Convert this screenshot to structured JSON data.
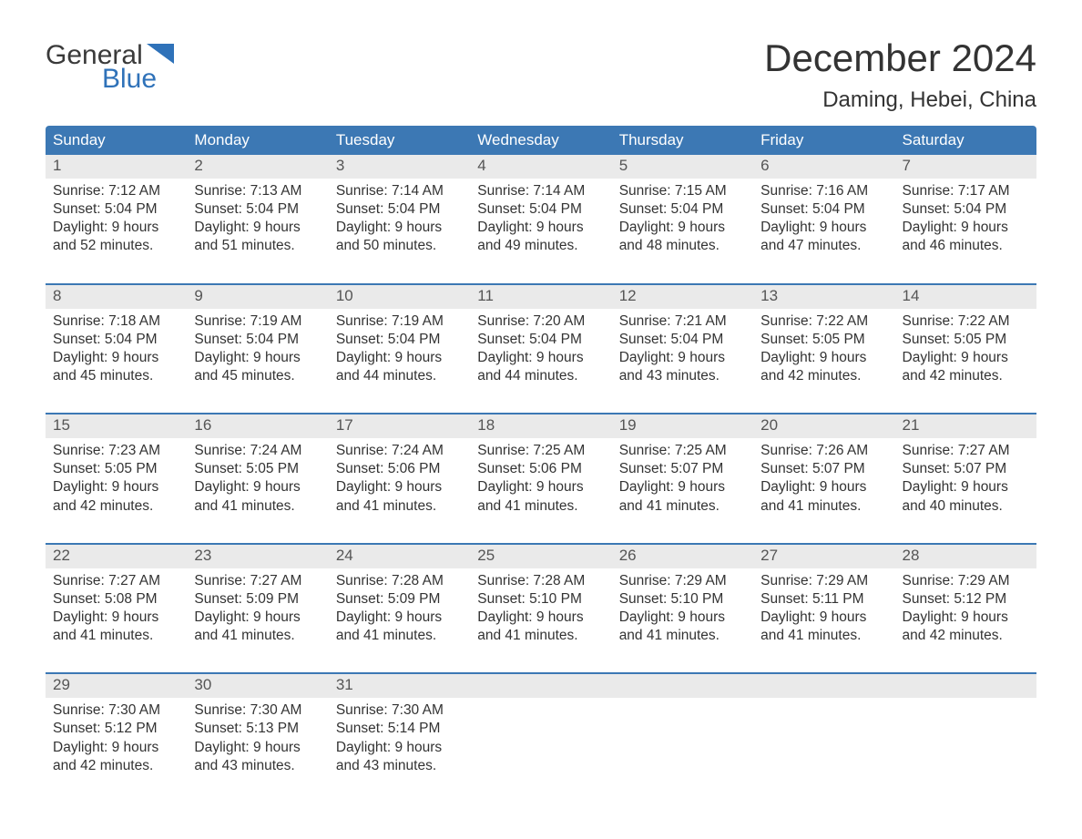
{
  "logo": {
    "text1": "General",
    "text2": "Blue"
  },
  "title": "December 2024",
  "location": "Daming, Hebei, China",
  "colors": {
    "header_bg": "#3c78b4",
    "header_text": "#ffffff",
    "daynum_bg": "#eaeaea",
    "daynum_text": "#555555",
    "body_text": "#333333",
    "accent_line": "#3c78b4",
    "logo_blue": "#2f72b9",
    "logo_gray": "#3a3a3a",
    "background": "#ffffff"
  },
  "typography": {
    "title_fontsize": 42,
    "location_fontsize": 24,
    "dow_fontsize": 17,
    "daynum_fontsize": 17,
    "cell_fontsize": 15.5,
    "font_family": "Arial"
  },
  "layout": {
    "columns": 7,
    "rows": 5
  },
  "days_of_week": [
    "Sunday",
    "Monday",
    "Tuesday",
    "Wednesday",
    "Thursday",
    "Friday",
    "Saturday"
  ],
  "weeks": [
    {
      "cells": [
        {
          "num": "1",
          "sunrise": "Sunrise: 7:12 AM",
          "sunset": "Sunset: 5:04 PM",
          "d1": "Daylight: 9 hours",
          "d2": "and 52 minutes."
        },
        {
          "num": "2",
          "sunrise": "Sunrise: 7:13 AM",
          "sunset": "Sunset: 5:04 PM",
          "d1": "Daylight: 9 hours",
          "d2": "and 51 minutes."
        },
        {
          "num": "3",
          "sunrise": "Sunrise: 7:14 AM",
          "sunset": "Sunset: 5:04 PM",
          "d1": "Daylight: 9 hours",
          "d2": "and 50 minutes."
        },
        {
          "num": "4",
          "sunrise": "Sunrise: 7:14 AM",
          "sunset": "Sunset: 5:04 PM",
          "d1": "Daylight: 9 hours",
          "d2": "and 49 minutes."
        },
        {
          "num": "5",
          "sunrise": "Sunrise: 7:15 AM",
          "sunset": "Sunset: 5:04 PM",
          "d1": "Daylight: 9 hours",
          "d2": "and 48 minutes."
        },
        {
          "num": "6",
          "sunrise": "Sunrise: 7:16 AM",
          "sunset": "Sunset: 5:04 PM",
          "d1": "Daylight: 9 hours",
          "d2": "and 47 minutes."
        },
        {
          "num": "7",
          "sunrise": "Sunrise: 7:17 AM",
          "sunset": "Sunset: 5:04 PM",
          "d1": "Daylight: 9 hours",
          "d2": "and 46 minutes."
        }
      ]
    },
    {
      "cells": [
        {
          "num": "8",
          "sunrise": "Sunrise: 7:18 AM",
          "sunset": "Sunset: 5:04 PM",
          "d1": "Daylight: 9 hours",
          "d2": "and 45 minutes."
        },
        {
          "num": "9",
          "sunrise": "Sunrise: 7:19 AM",
          "sunset": "Sunset: 5:04 PM",
          "d1": "Daylight: 9 hours",
          "d2": "and 45 minutes."
        },
        {
          "num": "10",
          "sunrise": "Sunrise: 7:19 AM",
          "sunset": "Sunset: 5:04 PM",
          "d1": "Daylight: 9 hours",
          "d2": "and 44 minutes."
        },
        {
          "num": "11",
          "sunrise": "Sunrise: 7:20 AM",
          "sunset": "Sunset: 5:04 PM",
          "d1": "Daylight: 9 hours",
          "d2": "and 44 minutes."
        },
        {
          "num": "12",
          "sunrise": "Sunrise: 7:21 AM",
          "sunset": "Sunset: 5:04 PM",
          "d1": "Daylight: 9 hours",
          "d2": "and 43 minutes."
        },
        {
          "num": "13",
          "sunrise": "Sunrise: 7:22 AM",
          "sunset": "Sunset: 5:05 PM",
          "d1": "Daylight: 9 hours",
          "d2": "and 42 minutes."
        },
        {
          "num": "14",
          "sunrise": "Sunrise: 7:22 AM",
          "sunset": "Sunset: 5:05 PM",
          "d1": "Daylight: 9 hours",
          "d2": "and 42 minutes."
        }
      ]
    },
    {
      "cells": [
        {
          "num": "15",
          "sunrise": "Sunrise: 7:23 AM",
          "sunset": "Sunset: 5:05 PM",
          "d1": "Daylight: 9 hours",
          "d2": "and 42 minutes."
        },
        {
          "num": "16",
          "sunrise": "Sunrise: 7:24 AM",
          "sunset": "Sunset: 5:05 PM",
          "d1": "Daylight: 9 hours",
          "d2": "and 41 minutes."
        },
        {
          "num": "17",
          "sunrise": "Sunrise: 7:24 AM",
          "sunset": "Sunset: 5:06 PM",
          "d1": "Daylight: 9 hours",
          "d2": "and 41 minutes."
        },
        {
          "num": "18",
          "sunrise": "Sunrise: 7:25 AM",
          "sunset": "Sunset: 5:06 PM",
          "d1": "Daylight: 9 hours",
          "d2": "and 41 minutes."
        },
        {
          "num": "19",
          "sunrise": "Sunrise: 7:25 AM",
          "sunset": "Sunset: 5:07 PM",
          "d1": "Daylight: 9 hours",
          "d2": "and 41 minutes."
        },
        {
          "num": "20",
          "sunrise": "Sunrise: 7:26 AM",
          "sunset": "Sunset: 5:07 PM",
          "d1": "Daylight: 9 hours",
          "d2": "and 41 minutes."
        },
        {
          "num": "21",
          "sunrise": "Sunrise: 7:27 AM",
          "sunset": "Sunset: 5:07 PM",
          "d1": "Daylight: 9 hours",
          "d2": "and 40 minutes."
        }
      ]
    },
    {
      "cells": [
        {
          "num": "22",
          "sunrise": "Sunrise: 7:27 AM",
          "sunset": "Sunset: 5:08 PM",
          "d1": "Daylight: 9 hours",
          "d2": "and 41 minutes."
        },
        {
          "num": "23",
          "sunrise": "Sunrise: 7:27 AM",
          "sunset": "Sunset: 5:09 PM",
          "d1": "Daylight: 9 hours",
          "d2": "and 41 minutes."
        },
        {
          "num": "24",
          "sunrise": "Sunrise: 7:28 AM",
          "sunset": "Sunset: 5:09 PM",
          "d1": "Daylight: 9 hours",
          "d2": "and 41 minutes."
        },
        {
          "num": "25",
          "sunrise": "Sunrise: 7:28 AM",
          "sunset": "Sunset: 5:10 PM",
          "d1": "Daylight: 9 hours",
          "d2": "and 41 minutes."
        },
        {
          "num": "26",
          "sunrise": "Sunrise: 7:29 AM",
          "sunset": "Sunset: 5:10 PM",
          "d1": "Daylight: 9 hours",
          "d2": "and 41 minutes."
        },
        {
          "num": "27",
          "sunrise": "Sunrise: 7:29 AM",
          "sunset": "Sunset: 5:11 PM",
          "d1": "Daylight: 9 hours",
          "d2": "and 41 minutes."
        },
        {
          "num": "28",
          "sunrise": "Sunrise: 7:29 AM",
          "sunset": "Sunset: 5:12 PM",
          "d1": "Daylight: 9 hours",
          "d2": "and 42 minutes."
        }
      ]
    },
    {
      "cells": [
        {
          "num": "29",
          "sunrise": "Sunrise: 7:30 AM",
          "sunset": "Sunset: 5:12 PM",
          "d1": "Daylight: 9 hours",
          "d2": "and 42 minutes."
        },
        {
          "num": "30",
          "sunrise": "Sunrise: 7:30 AM",
          "sunset": "Sunset: 5:13 PM",
          "d1": "Daylight: 9 hours",
          "d2": "and 43 minutes."
        },
        {
          "num": "31",
          "sunrise": "Sunrise: 7:30 AM",
          "sunset": "Sunset: 5:14 PM",
          "d1": "Daylight: 9 hours",
          "d2": "and 43 minutes."
        },
        {
          "empty": true
        },
        {
          "empty": true
        },
        {
          "empty": true
        },
        {
          "empty": true
        }
      ]
    }
  ]
}
